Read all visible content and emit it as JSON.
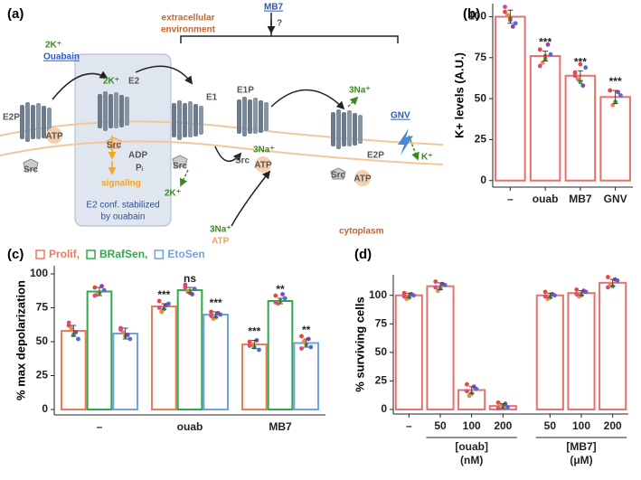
{
  "panel_labels": [
    "(a)",
    "(b)",
    "(c)",
    "(d)"
  ],
  "diagram": {
    "labels": [
      "extracellular",
      "environment",
      "MB7",
      "?",
      "2K⁺",
      "Ouabain",
      "2K⁺",
      "E2",
      "E2P",
      "ATP",
      "Src",
      "Src",
      "ADP",
      "Pᵢ",
      "signaling",
      "E2 conf. stabilized",
      "by ouabain",
      "E1",
      "Src",
      "2K⁺",
      "E1P",
      "Src",
      "ATP",
      "3Na⁺",
      "3Na⁺",
      "ATP",
      "3Na⁺",
      "E2P",
      "Src",
      "ATP",
      "cytoplasm",
      "GNV",
      "K⁺"
    ]
  },
  "chart_data": [
    {
      "type": "bar",
      "ylabel": "K+ levels (A.U.)",
      "categories": [
        "–",
        "ouab",
        "MB7",
        "GNV"
      ],
      "values": [
        100,
        76,
        64,
        51
      ],
      "errors": [
        4,
        3,
        3,
        4
      ],
      "color": "#e8706e",
      "points": [
        [
          103,
          99,
          96,
          101,
          94,
          106,
          98
        ],
        [
          80,
          74,
          77,
          72,
          83,
          70,
          76
        ],
        [
          66,
          60,
          69,
          62,
          58,
          64,
          71
        ],
        [
          55,
          48,
          52,
          46,
          54
        ]
      ],
      "point_colors": [
        "#e8453c",
        "#35a853",
        "#4a6fd8",
        "#f0883a",
        "#8e44ad",
        "#d64a8a"
      ],
      "annotations": [
        "***",
        "***",
        "***"
      ],
      "ylim": [
        -4,
        108
      ],
      "yticks": [
        0,
        25,
        50,
        75,
        100
      ]
    },
    {
      "type": "grouped_bar",
      "ylabel": "% max depolarization",
      "categories": [
        "–",
        "ouab",
        "MB7"
      ],
      "series": [
        {
          "name": "Prolif,",
          "color": "#ee7a5c",
          "values": [
            58,
            76,
            48
          ],
          "errors": [
            4,
            2,
            3
          ],
          "points": [
            [
              62,
              55,
              52,
              60,
              57,
              64
            ],
            [
              80,
              74,
              78,
              72,
              77,
              75
            ],
            [
              50,
              46,
              44,
              48,
              51,
              47
            ]
          ]
        },
        {
          "name": "BRafSen,",
          "color": "#2eaa4a",
          "values": [
            87,
            88,
            80
          ],
          "errors": [
            3,
            2,
            2
          ],
          "points": [
            [
              90,
              86,
              88,
              85,
              91,
              84
            ],
            [
              92,
              86,
              89,
              87,
              85,
              90
            ],
            [
              84,
              80,
              82,
              78,
              85,
              79
            ]
          ]
        },
        {
          "name": "EtoSen",
          "color": "#6fa3e0",
          "values": [
            56,
            70,
            49
          ],
          "errors": [
            4,
            2,
            3
          ],
          "points": [
            [
              60,
              54,
              52,
              57,
              55,
              59
            ],
            [
              72,
              68,
              70,
              67,
              71,
              69
            ],
            [
              54,
              48,
              46,
              50,
              52,
              45
            ]
          ]
        }
      ],
      "point_colors": [
        "#e8453c",
        "#35a853",
        "#4a6fd8",
        "#f0883a",
        "#8e44ad",
        "#d64a8a"
      ],
      "annotations": [
        [
          "***",
          "ns",
          "***"
        ],
        [
          "***",
          "**",
          "**"
        ]
      ],
      "ylim": [
        -4,
        106
      ],
      "yticks": [
        0,
        25,
        50,
        75,
        100
      ]
    },
    {
      "type": "bar",
      "ylabel": "% surviving cells",
      "categories": [
        "–",
        "50",
        "100",
        "200",
        "50",
        "100",
        "200"
      ],
      "values": [
        100,
        108,
        17,
        3,
        100,
        102,
        111
      ],
      "errors": [
        2,
        3,
        3,
        2,
        2,
        2,
        3
      ],
      "color": "#e8706e",
      "points": [
        [
          102,
          98,
          100,
          97,
          101,
          99
        ],
        [
          112,
          106,
          109,
          104,
          110,
          107
        ],
        [
          22,
          14,
          18,
          12,
          20,
          16
        ],
        [
          6,
          3,
          2,
          4,
          5,
          1
        ],
        [
          103,
          98,
          100,
          97,
          101,
          99
        ],
        [
          105,
          100,
          103,
          99,
          104,
          101
        ],
        [
          116,
          108,
          113,
          110,
          114,
          107
        ]
      ],
      "point_colors": [
        "#e8453c",
        "#35a853",
        "#4a6fd8",
        "#f0883a",
        "#8e44ad",
        "#d64a8a"
      ],
      "groups": [
        {
          "label": "[ouab]",
          "unit": "(nM)"
        },
        {
          "label": "[MB7]",
          "unit": "(μM)"
        }
      ],
      "ylim": [
        -4,
        118
      ],
      "yticks": [
        0,
        25,
        50,
        75,
        100
      ]
    }
  ]
}
